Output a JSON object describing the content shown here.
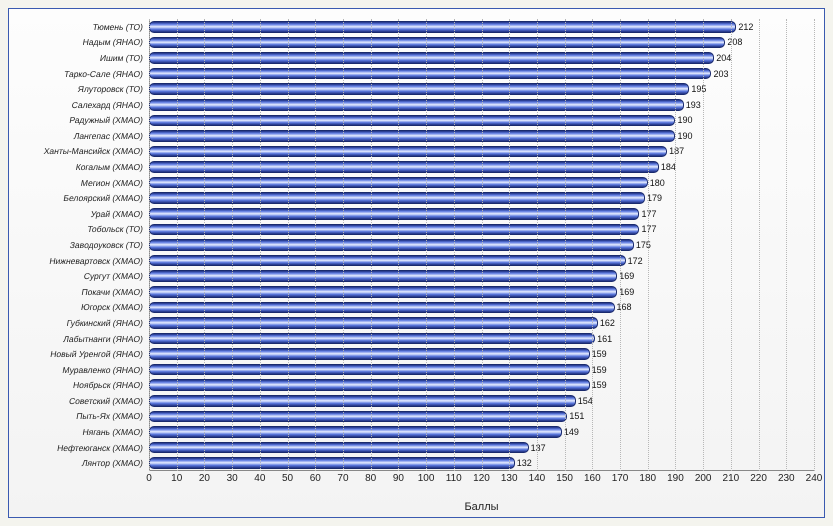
{
  "chart": {
    "type": "bar-horizontal",
    "xlabel": "Баллы",
    "xlim": [
      0,
      240
    ],
    "xtick_step": 10,
    "label_fontsize": 9,
    "tick_fontsize": 10,
    "value_fontsize": 9,
    "background_gradient_top": "#fdfdfd",
    "background_gradient_bottom": "#f3f3f3",
    "panel_border_color": "#3a5ab0",
    "grid_color": "#b7b7b7",
    "bar_gradient": [
      "#1e2f7f",
      "#5d7ae0",
      "#e6ecff",
      "#5d7ae0",
      "#1e2f7f"
    ],
    "bar_border_color": "#1a2a6d",
    "items": [
      {
        "label": "Тюмень (ТО)",
        "value": 212
      },
      {
        "label": "Надым (ЯНАО)",
        "value": 208
      },
      {
        "label": "Ишим (ТО)",
        "value": 204
      },
      {
        "label": "Тарко-Сале (ЯНАО)",
        "value": 203
      },
      {
        "label": "Ялуторовск (ТО)",
        "value": 195
      },
      {
        "label": "Салехард (ЯНАО)",
        "value": 193
      },
      {
        "label": "Радужный (ХМАО)",
        "value": 190
      },
      {
        "label": "Лангепас (ХМАО)",
        "value": 190
      },
      {
        "label": "Ханты-Мансийск (ХМАО)",
        "value": 187
      },
      {
        "label": "Когалым (ХМАО)",
        "value": 184
      },
      {
        "label": "Мегион (ХМАО)",
        "value": 180
      },
      {
        "label": "Белоярский (ХМАО)",
        "value": 179
      },
      {
        "label": "Урай (ХМАО)",
        "value": 177
      },
      {
        "label": "Тобольск (ТО)",
        "value": 177
      },
      {
        "label": "Заводоуковск (ТО)",
        "value": 175
      },
      {
        "label": "Нижневартовск (ХМАО)",
        "value": 172
      },
      {
        "label": "Сургут (ХМАО)",
        "value": 169
      },
      {
        "label": "Покачи (ХМАО)",
        "value": 169
      },
      {
        "label": "Югорск (ХМАО)",
        "value": 168
      },
      {
        "label": "Губкинский (ЯНАО)",
        "value": 162
      },
      {
        "label": "Лабытнанги (ЯНАО)",
        "value": 161
      },
      {
        "label": "Новый Уренгой (ЯНАО)",
        "value": 159
      },
      {
        "label": "Муравленко (ЯНАО)",
        "value": 159
      },
      {
        "label": "Ноябрьск (ЯНАО)",
        "value": 159
      },
      {
        "label": "Советский (ХМАО)",
        "value": 154
      },
      {
        "label": "Пыть-Ях (ХМАО)",
        "value": 151
      },
      {
        "label": "Нягань (ХМАО)",
        "value": 149
      },
      {
        "label": "Нефтеюганск (ХМАО)",
        "value": 137
      },
      {
        "label": "Лянтор (ХМАО)",
        "value": 132
      }
    ]
  }
}
